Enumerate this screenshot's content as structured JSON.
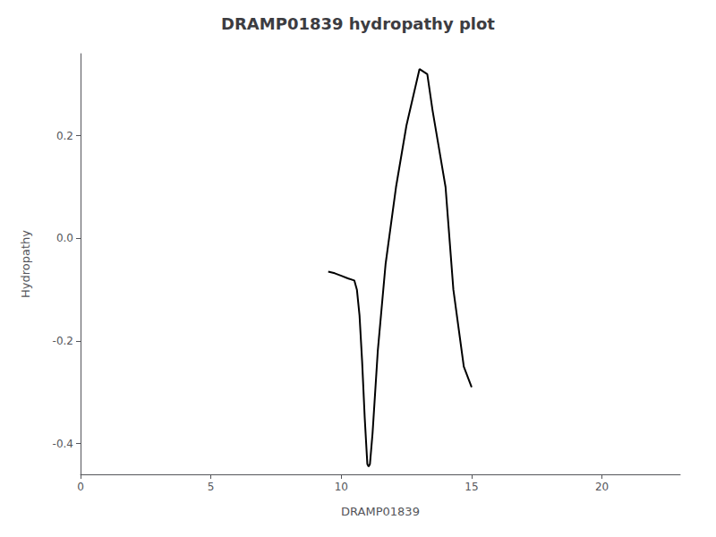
{
  "chart_data": {
    "type": "line",
    "title": "DRAMP01839 hydropathy plot",
    "xlabel": "DRAMP01839",
    "ylabel": "Hydropathy",
    "x": [
      9.5,
      9.75,
      10.0,
      10.25,
      10.5,
      10.6,
      10.7,
      10.8,
      10.9,
      11.0,
      11.05,
      11.1,
      11.2,
      11.4,
      11.7,
      12.1,
      12.5,
      13.0,
      13.3,
      13.5,
      13.8,
      14.0,
      14.3,
      14.7,
      15.0
    ],
    "values": [
      -0.065,
      -0.068,
      -0.073,
      -0.078,
      -0.082,
      -0.1,
      -0.15,
      -0.24,
      -0.35,
      -0.44,
      -0.445,
      -0.44,
      -0.38,
      -0.22,
      -0.05,
      0.1,
      0.22,
      0.33,
      0.32,
      0.25,
      0.16,
      0.1,
      -0.1,
      -0.25,
      -0.29
    ],
    "color": "#000000",
    "xlim": [
      0,
      23
    ],
    "xticks": [
      0,
      5,
      10,
      15,
      20
    ],
    "ylim": [
      -0.46,
      0.36
    ],
    "yticks": [
      -0.4,
      -0.2,
      {
        "value": 0.0,
        "label": "0.0"
      },
      0.2
    ],
    "grid": false
  }
}
